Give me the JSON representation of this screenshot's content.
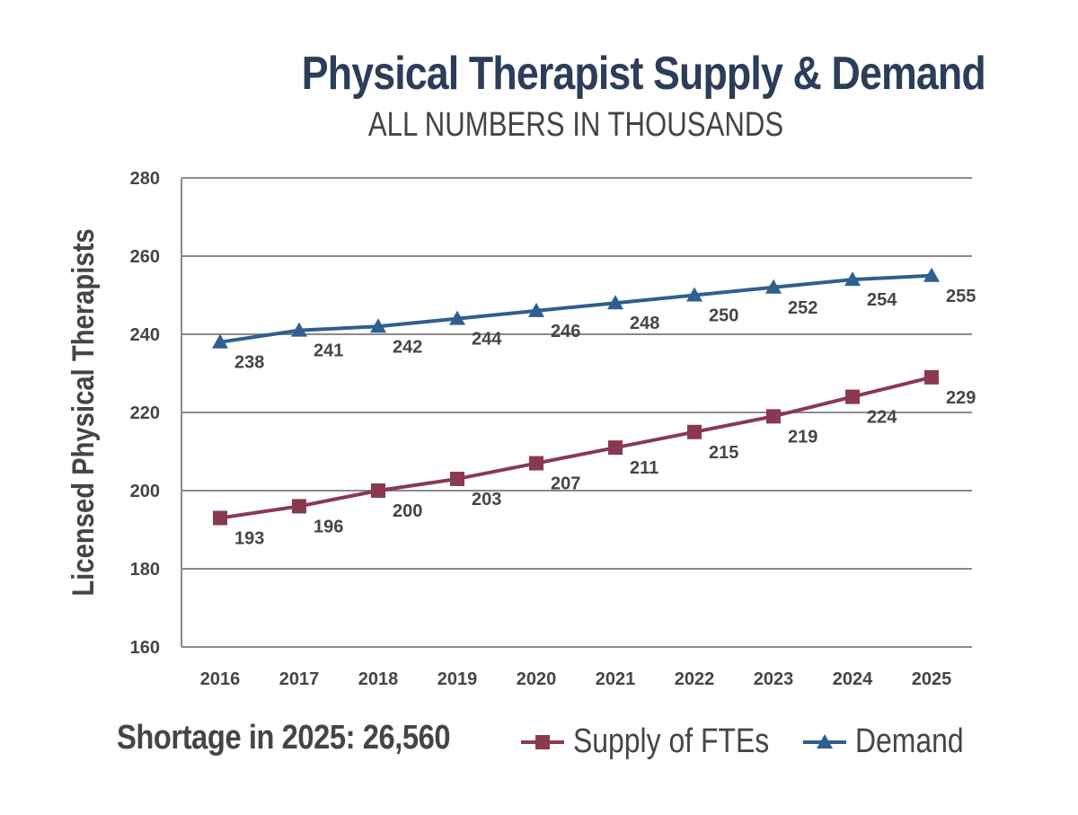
{
  "header": {
    "title": "Physical Therapist Supply & Demand",
    "subtitle": "ALL NUMBERS IN THOUSANDS"
  },
  "footer": {
    "shortage": "Shortage in 2025: 26,560"
  },
  "colors": {
    "supply": "#8a3a4e",
    "demand": "#2e5f8f",
    "grid": "#8a8a8a",
    "text": "#454545"
  },
  "chart_data": {
    "type": "line",
    "categories": [
      "2016",
      "2017",
      "2018",
      "2019",
      "2020",
      "2021",
      "2022",
      "2023",
      "2024",
      "2025"
    ],
    "series": [
      {
        "name": "Supply of FTEs",
        "marker": "square",
        "values": [
          193,
          196,
          200,
          203,
          207,
          211,
          215,
          219,
          224,
          229
        ]
      },
      {
        "name": "Demand",
        "marker": "triangle",
        "values": [
          238,
          241,
          242,
          244,
          246,
          248,
          250,
          252,
          254,
          255
        ]
      }
    ],
    "ylabel": "Licensed Physical Therapists",
    "ylim": [
      160,
      280
    ],
    "yticks": [
      160,
      180,
      200,
      220,
      240,
      260,
      280
    ],
    "grid": true,
    "legend": "bottom-right"
  }
}
